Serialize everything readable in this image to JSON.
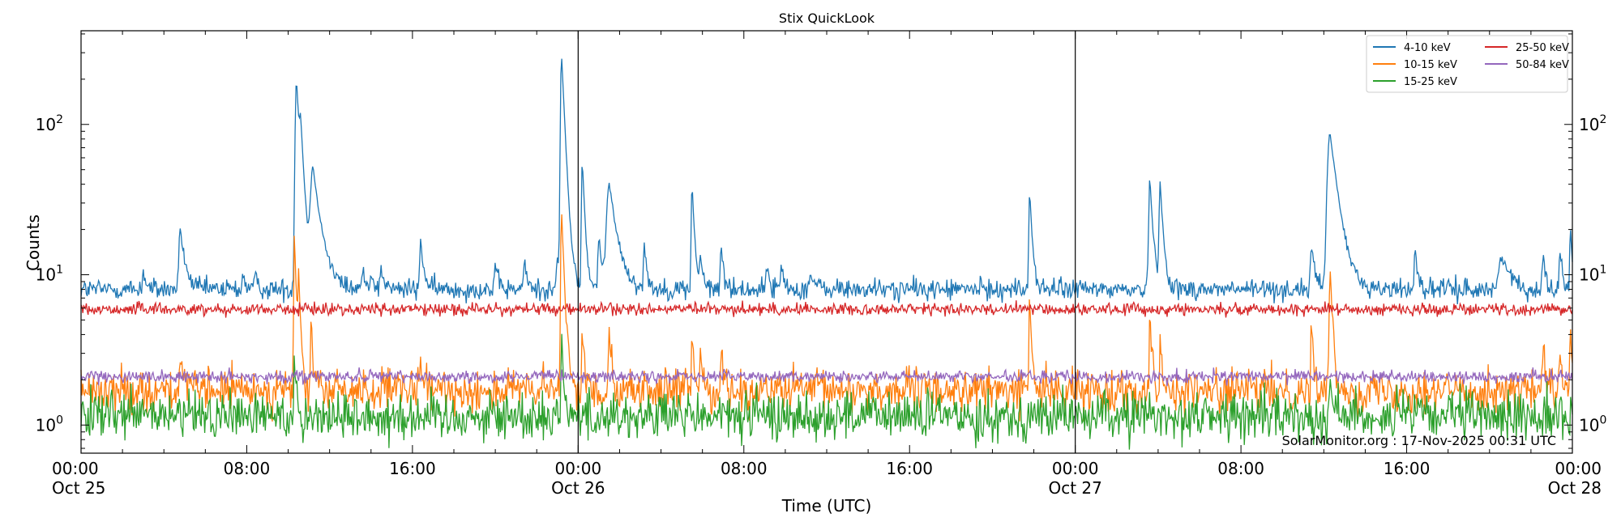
{
  "chart_data": {
    "type": "line",
    "title": "Stix QuickLook",
    "xlabel": "Time (UTC)",
    "ylabel": "Counts",
    "y_scale": "log",
    "ylim": [
      0.65,
      420
    ],
    "xlim_hours": [
      0,
      72
    ],
    "x_range": [
      "2025-10-25 00:00",
      "2025-10-28 00:00"
    ],
    "x_ticks": [
      {
        "hour": 0,
        "time": "00:00",
        "date": "Oct 25"
      },
      {
        "hour": 8,
        "time": "08:00",
        "date": ""
      },
      {
        "hour": 16,
        "time": "16:00",
        "date": ""
      },
      {
        "hour": 24,
        "time": "00:00",
        "date": "Oct 26"
      },
      {
        "hour": 32,
        "time": "08:00",
        "date": ""
      },
      {
        "hour": 40,
        "time": "16:00",
        "date": ""
      },
      {
        "hour": 48,
        "time": "00:00",
        "date": "Oct 27"
      },
      {
        "hour": 56,
        "time": "08:00",
        "date": ""
      },
      {
        "hour": 64,
        "time": "16:00",
        "date": ""
      },
      {
        "hour": 72,
        "time": "00:00",
        "date": "Oct 28"
      }
    ],
    "y_ticks": [
      {
        "value": 1,
        "base": "10",
        "exp": "0"
      },
      {
        "value": 10,
        "base": "10",
        "exp": "1"
      },
      {
        "value": 100,
        "base": "10",
        "exp": "2"
      }
    ],
    "day_boundaries_hours": [
      24,
      48
    ],
    "legend": {
      "placement": "top-right",
      "columns": 2
    },
    "annotation": "SolarMonitor.org : 17-Nov-2025 00:31 UTC",
    "series": [
      {
        "name": "4-10 keV",
        "color": "#1f77b4",
        "baseline": 8.0,
        "noise": 0.035,
        "peaks": [
          {
            "hour": 3.0,
            "value": 11,
            "width": 0.08
          },
          {
            "hour": 4.8,
            "value": 20,
            "width": 0.15
          },
          {
            "hour": 7.8,
            "value": 9.8,
            "width": 0.1
          },
          {
            "hour": 8.4,
            "value": 9.5,
            "width": 0.1
          },
          {
            "hour": 10.4,
            "value": 200,
            "width": 0.12
          },
          {
            "hour": 10.6,
            "value": 58,
            "width": 0.1
          },
          {
            "hour": 11.2,
            "value": 50,
            "width": 0.25
          },
          {
            "hour": 13.6,
            "value": 10.5,
            "width": 0.1
          },
          {
            "hour": 14.0,
            "value": 10.5,
            "width": 0.1
          },
          {
            "hour": 14.5,
            "value": 11,
            "width": 0.1
          },
          {
            "hour": 16.4,
            "value": 17,
            "width": 0.1
          },
          {
            "hour": 20.0,
            "value": 11,
            "width": 0.1
          },
          {
            "hour": 21.4,
            "value": 12,
            "width": 0.1
          },
          {
            "hour": 23.0,
            "value": 13,
            "width": 0.1
          },
          {
            "hour": 23.2,
            "value": 290,
            "width": 0.1
          },
          {
            "hour": 24.2,
            "value": 58,
            "width": 0.08
          },
          {
            "hour": 25.0,
            "value": 18,
            "width": 0.1
          },
          {
            "hour": 25.5,
            "value": 40,
            "width": 0.25
          },
          {
            "hour": 27.2,
            "value": 16,
            "width": 0.08
          },
          {
            "hour": 29.5,
            "value": 40,
            "width": 0.08
          },
          {
            "hour": 29.9,
            "value": 13,
            "width": 0.08
          },
          {
            "hour": 30.9,
            "value": 16,
            "width": 0.08
          },
          {
            "hour": 33.1,
            "value": 12,
            "width": 0.08
          },
          {
            "hour": 33.8,
            "value": 12,
            "width": 0.08
          },
          {
            "hour": 35.2,
            "value": 10,
            "width": 0.15
          },
          {
            "hour": 45.8,
            "value": 37,
            "width": 0.08
          },
          {
            "hour": 51.6,
            "value": 45,
            "width": 0.1
          },
          {
            "hour": 52.1,
            "value": 40,
            "width": 0.1
          },
          {
            "hour": 59.4,
            "value": 16,
            "width": 0.1
          },
          {
            "hour": 60.3,
            "value": 88,
            "width": 0.25
          },
          {
            "hour": 64.4,
            "value": 16,
            "width": 0.08
          },
          {
            "hour": 68.6,
            "value": 14,
            "width": 0.25
          },
          {
            "hour": 70.6,
            "value": 14,
            "width": 0.08
          },
          {
            "hour": 71.4,
            "value": 15,
            "width": 0.08
          },
          {
            "hour": 71.9,
            "value": 22,
            "width": 0.06
          }
        ]
      },
      {
        "name": "10-15 keV",
        "color": "#ff7f0e",
        "baseline": 1.7,
        "noise": 0.07,
        "peaks": [
          {
            "hour": 4.8,
            "value": 3.0,
            "width": 0.08
          },
          {
            "hour": 10.3,
            "value": 19,
            "width": 0.06
          },
          {
            "hour": 10.5,
            "value": 10,
            "width": 0.06
          },
          {
            "hour": 11.1,
            "value": 5,
            "width": 0.06
          },
          {
            "hour": 16.4,
            "value": 2.8,
            "width": 0.06
          },
          {
            "hour": 23.2,
            "value": 27,
            "width": 0.08
          },
          {
            "hour": 24.2,
            "value": 4.6,
            "width": 0.06
          },
          {
            "hour": 25.5,
            "value": 4.6,
            "width": 0.08
          },
          {
            "hour": 29.5,
            "value": 4.2,
            "width": 0.06
          },
          {
            "hour": 29.9,
            "value": 3.5,
            "width": 0.06
          },
          {
            "hour": 30.9,
            "value": 3.2,
            "width": 0.06
          },
          {
            "hour": 45.8,
            "value": 7.5,
            "width": 0.06
          },
          {
            "hour": 51.6,
            "value": 6.0,
            "width": 0.06
          },
          {
            "hour": 52.1,
            "value": 4.0,
            "width": 0.06
          },
          {
            "hour": 59.4,
            "value": 5.2,
            "width": 0.06
          },
          {
            "hour": 60.3,
            "value": 11,
            "width": 0.08
          },
          {
            "hour": 70.6,
            "value": 3.4,
            "width": 0.06
          },
          {
            "hour": 71.4,
            "value": 3.1,
            "width": 0.06
          },
          {
            "hour": 71.9,
            "value": 4.2,
            "width": 0.06
          }
        ]
      },
      {
        "name": "15-25 keV",
        "color": "#2ca02c",
        "baseline": 1.15,
        "noise": 0.08,
        "peaks": [
          {
            "hour": 10.3,
            "value": 3.0,
            "width": 0.06
          },
          {
            "hour": 23.2,
            "value": 4.3,
            "width": 0.06
          },
          {
            "hour": 60.3,
            "value": 2.5,
            "width": 0.06
          }
        ]
      },
      {
        "name": "25-50 keV",
        "color": "#d62728",
        "baseline": 5.9,
        "noise": 0.02,
        "peaks": []
      },
      {
        "name": "50-84 keV",
        "color": "#9467bd",
        "baseline": 2.1,
        "noise": 0.02,
        "peaks": []
      }
    ]
  }
}
